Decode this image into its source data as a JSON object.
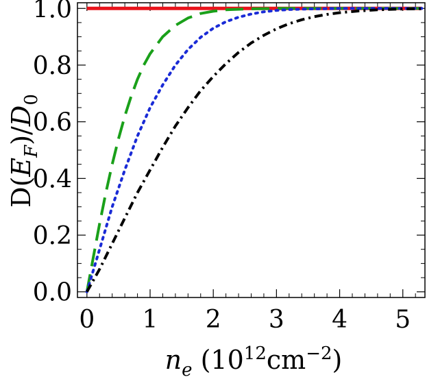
{
  "chart_data": {
    "type": "line",
    "xlabel": "n_e (10^12 cm^-2)",
    "ylabel": "D(E_F)/D_0",
    "xlim": [
      -0.15,
      5.35
    ],
    "ylim": [
      -0.02,
      1.02
    ],
    "x_ticks": [
      "0",
      "1",
      "2",
      "3",
      "4",
      "5"
    ],
    "y_ticks": [
      "0.0",
      "0.2",
      "0.4",
      "0.6",
      "0.8",
      "1.0"
    ],
    "grid": false,
    "legend": "none",
    "series": [
      {
        "color": "#e8141c",
        "style": "solid",
        "x": [
          0.0,
          5.3
        ],
        "y": [
          1.0,
          1.0
        ]
      },
      {
        "color": "#1aa01a",
        "style": "dashed",
        "x": [
          0.0,
          0.1,
          0.2,
          0.3,
          0.4,
          0.5,
          0.6,
          0.7,
          0.8,
          0.9,
          1.0,
          1.2,
          1.4,
          1.6,
          1.8,
          2.0,
          2.2,
          2.5,
          3.0,
          3.5,
          4.0,
          4.5,
          5.0,
          5.3
        ],
        "y": [
          0.0,
          0.12,
          0.24,
          0.35,
          0.45,
          0.54,
          0.62,
          0.69,
          0.75,
          0.8,
          0.84,
          0.9,
          0.94,
          0.966,
          0.982,
          0.99,
          0.995,
          0.998,
          1.0,
          1.0,
          1.0,
          1.0,
          1.0,
          1.0
        ]
      },
      {
        "color": "#1a2bd6",
        "style": "dotted",
        "x": [
          0.0,
          0.2,
          0.4,
          0.6,
          0.8,
          1.0,
          1.2,
          1.4,
          1.6,
          1.8,
          2.0,
          2.2,
          2.4,
          2.6,
          2.8,
          3.0,
          3.2,
          3.5,
          4.0,
          4.5,
          5.0,
          5.3
        ],
        "y": [
          0.0,
          0.15,
          0.3,
          0.43,
          0.55,
          0.65,
          0.73,
          0.8,
          0.855,
          0.898,
          0.93,
          0.953,
          0.969,
          0.98,
          0.988,
          0.993,
          0.996,
          0.998,
          1.0,
          1.0,
          1.0,
          1.0
        ]
      },
      {
        "color": "#000000",
        "style": "dashdot",
        "x": [
          0.0,
          0.2,
          0.4,
          0.6,
          0.8,
          1.0,
          1.2,
          1.4,
          1.6,
          1.8,
          2.0,
          2.2,
          2.4,
          2.6,
          2.8,
          3.0,
          3.2,
          3.4,
          3.6,
          3.8,
          4.0,
          4.3,
          4.6,
          5.0,
          5.3
        ],
        "y": [
          0.0,
          0.08,
          0.17,
          0.26,
          0.35,
          0.43,
          0.51,
          0.585,
          0.65,
          0.71,
          0.76,
          0.805,
          0.845,
          0.878,
          0.905,
          0.928,
          0.946,
          0.96,
          0.971,
          0.979,
          0.985,
          0.991,
          0.995,
          0.998,
          0.999
        ]
      }
    ]
  }
}
